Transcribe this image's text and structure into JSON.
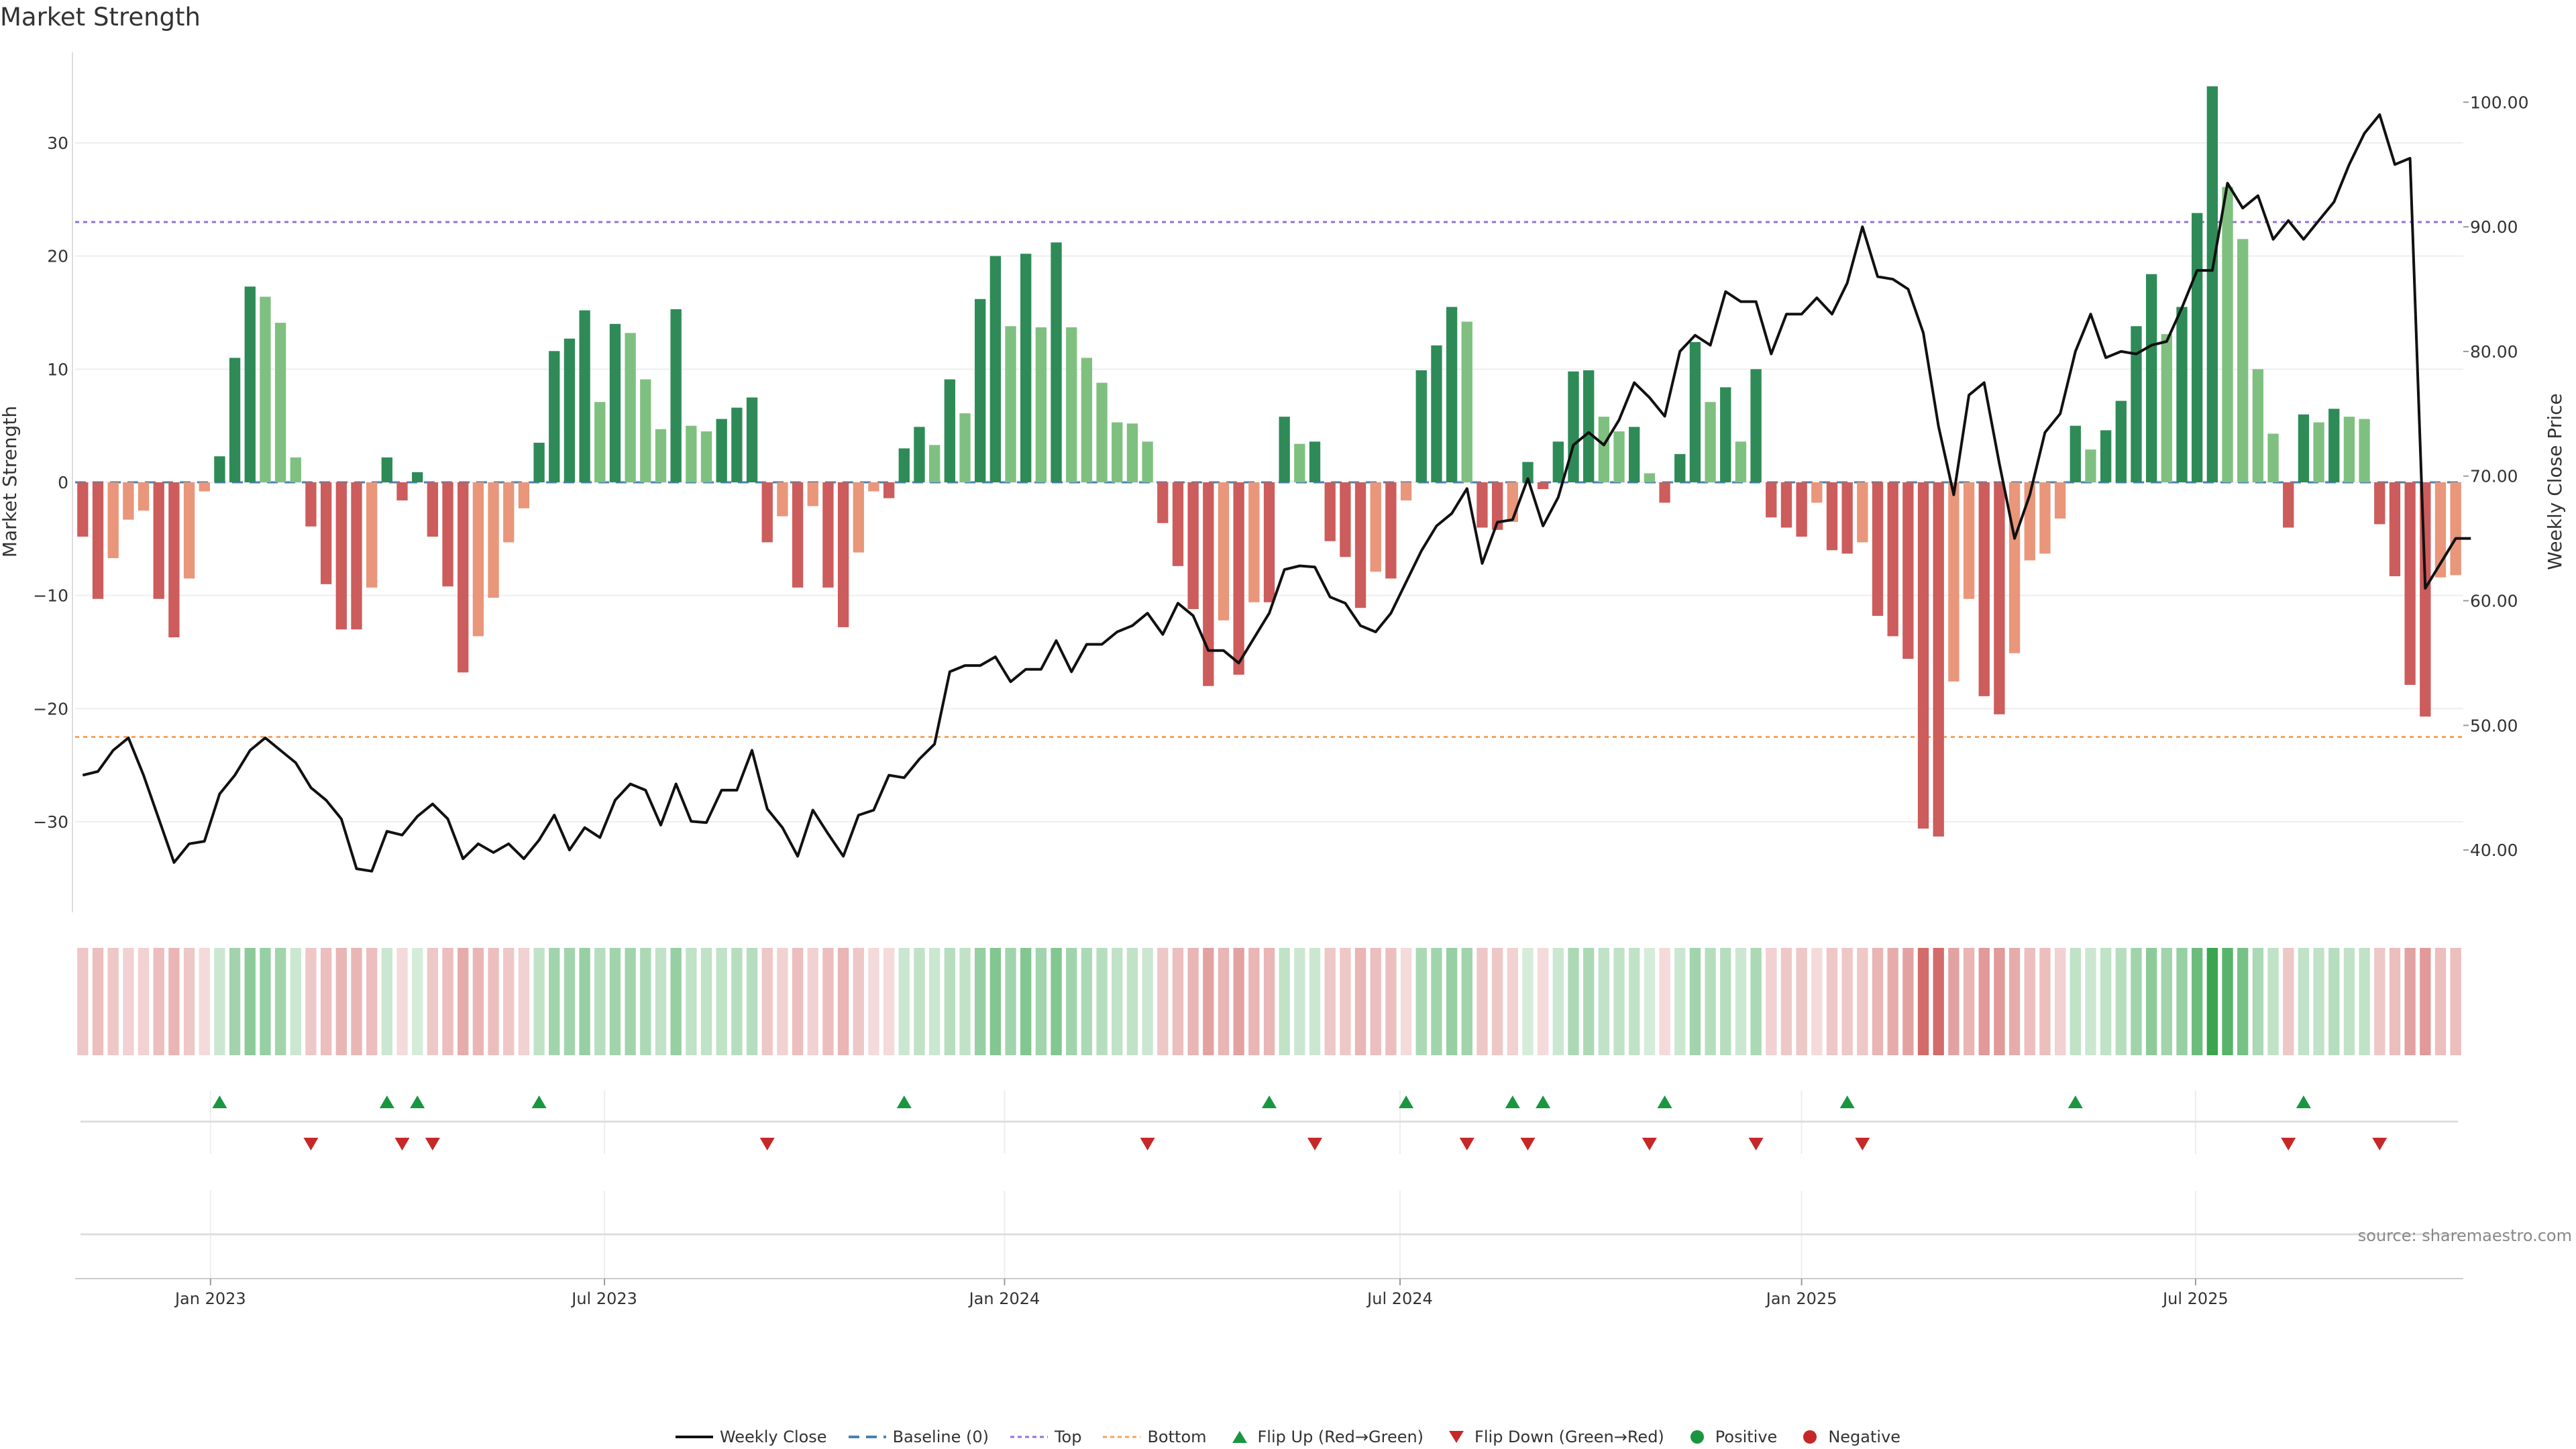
{
  "chart_data": {
    "type": "bar",
    "title": "Market Strength",
    "ylabel": "Market Strength",
    "y2label": "Weekly Close Price",
    "ylim": [
      -38,
      38
    ],
    "y2lim": [
      35,
      104
    ],
    "yticks": [
      30,
      20,
      10,
      0,
      -10,
      -20,
      -30
    ],
    "ytick_labels": [
      "30",
      "20",
      "10",
      "0",
      "−10",
      "−20",
      "−30"
    ],
    "y2ticks": [
      100,
      90,
      80,
      70,
      60,
      50,
      40
    ],
    "y2tick_labels": [
      "100.00",
      "90.00",
      "80.00",
      "70.00",
      "60.00",
      "50.00",
      "40.00"
    ],
    "xticks": [
      "Jan 2023",
      "Jul 2023",
      "Jan 2024",
      "Jul 2024",
      "Jan 2025",
      "Jul 2025"
    ],
    "xtick_weeks": [
      8.4,
      34.3,
      60.6,
      86.6,
      113,
      138.9
    ],
    "top_line": 23,
    "bottom_line": -22.5,
    "source": "source: sharemaestro.com",
    "colors": {
      "pos_strong": "#2e8b57",
      "pos_weak": "#7fc080",
      "neg_strong": "#cd5c5c",
      "neg_weak": "#e9967a",
      "price": "#111111",
      "baseline": "#4682b4",
      "top": "#9370db",
      "bottom": "#f4a460",
      "flip_up": "#1a9641",
      "flip_down": "#c62828"
    },
    "strength": [
      -4.8,
      -10.3,
      -6.7,
      -3.3,
      -2.5,
      -10.3,
      -13.7,
      -8.5,
      -0.8,
      2.3,
      11.0,
      17.3,
      16.4,
      14.1,
      2.2,
      -3.9,
      -9.0,
      -13.0,
      -13.0,
      -9.3,
      2.2,
      -1.6,
      0.9,
      -4.8,
      -9.2,
      -16.8,
      -13.6,
      -10.2,
      -5.3,
      -2.3,
      3.5,
      11.6,
      12.7,
      15.2,
      7.1,
      14.0,
      13.2,
      9.1,
      4.7,
      15.3,
      5.0,
      4.5,
      5.6,
      6.6,
      7.5,
      -5.3,
      -3.0,
      -9.3,
      -2.1,
      -9.3,
      -12.8,
      -6.2,
      -0.8,
      -1.4,
      3.0,
      4.9,
      3.3,
      9.1,
      6.1,
      16.2,
      20.0,
      13.8,
      20.2,
      13.7,
      21.2,
      13.7,
      11.0,
      8.8,
      5.3,
      5.2,
      3.6,
      -3.6,
      -7.4,
      -11.2,
      -18.0,
      -12.2,
      -17.0,
      -10.6,
      -10.6,
      5.8,
      3.4,
      3.6,
      -5.2,
      -6.6,
      -11.1,
      -7.9,
      -8.5,
      -1.6,
      9.9,
      12.1,
      15.5,
      14.2,
      -4.0,
      -4.2,
      -3.5,
      1.8,
      -0.6,
      3.6,
      9.8,
      9.9,
      5.8,
      4.5,
      4.9,
      0.8,
      -1.8,
      2.5,
      12.4,
      7.1,
      8.4,
      3.6,
      10.0,
      -3.1,
      -4.0,
      -4.8,
      -1.8,
      -6.0,
      -6.3,
      -5.3,
      -11.8,
      -13.6,
      -15.6,
      -30.6,
      -31.3,
      -17.6,
      -10.3,
      -18.9,
      -20.5,
      -15.1,
      -6.9,
      -6.3,
      -3.2,
      5.0,
      2.9,
      4.6,
      7.2,
      13.8,
      18.4,
      13.1,
      15.5,
      23.8,
      35.0,
      26.1,
      21.5,
      10.0,
      4.3,
      -4.0,
      6.0,
      5.3,
      6.5,
      5.8,
      5.6,
      -3.7,
      -8.3,
      -17.9,
      -20.7,
      -8.4,
      -8.2
    ],
    "strength_intensity": [
      0.3,
      0.35,
      0.3,
      0.25,
      0.25,
      0.35,
      0.4,
      0.3,
      0.2,
      0.25,
      0.45,
      0.55,
      0.5,
      0.45,
      0.25,
      0.3,
      0.35,
      0.4,
      0.4,
      0.35,
      0.25,
      0.2,
      0.2,
      0.3,
      0.35,
      0.45,
      0.4,
      0.35,
      0.3,
      0.25,
      0.3,
      0.45,
      0.45,
      0.5,
      0.35,
      0.45,
      0.45,
      0.4,
      0.3,
      0.5,
      0.3,
      0.3,
      0.3,
      0.35,
      0.35,
      0.3,
      0.25,
      0.35,
      0.25,
      0.35,
      0.4,
      0.3,
      0.2,
      0.2,
      0.25,
      0.3,
      0.25,
      0.35,
      0.3,
      0.5,
      0.6,
      0.45,
      0.6,
      0.45,
      0.6,
      0.45,
      0.4,
      0.35,
      0.3,
      0.3,
      0.25,
      0.3,
      0.35,
      0.4,
      0.5,
      0.4,
      0.5,
      0.4,
      0.4,
      0.3,
      0.25,
      0.25,
      0.3,
      0.3,
      0.4,
      0.35,
      0.35,
      0.2,
      0.4,
      0.45,
      0.5,
      0.45,
      0.3,
      0.3,
      0.25,
      0.2,
      0.2,
      0.25,
      0.4,
      0.4,
      0.3,
      0.3,
      0.3,
      0.2,
      0.2,
      0.25,
      0.45,
      0.35,
      0.35,
      0.25,
      0.4,
      0.25,
      0.3,
      0.3,
      0.2,
      0.3,
      0.3,
      0.3,
      0.4,
      0.45,
      0.5,
      0.8,
      0.8,
      0.5,
      0.4,
      0.55,
      0.55,
      0.45,
      0.35,
      0.35,
      0.25,
      0.3,
      0.25,
      0.3,
      0.35,
      0.45,
      0.55,
      0.45,
      0.5,
      0.7,
      0.95,
      0.8,
      0.65,
      0.4,
      0.3,
      0.3,
      0.3,
      0.3,
      0.35,
      0.3,
      0.3,
      0.3,
      0.35,
      0.5,
      0.55,
      0.35,
      0.35
    ],
    "close": [
      46.0,
      46.3,
      48.0,
      49.0,
      46.0,
      42.5,
      39.0,
      40.5,
      40.7,
      44.5,
      46.0,
      48.0,
      49.0,
      48.0,
      47.0,
      45.0,
      44.0,
      42.5,
      38.5,
      38.3,
      41.5,
      41.2,
      42.7,
      43.7,
      42.5,
      39.3,
      40.5,
      39.8,
      40.5,
      39.3,
      40.8,
      42.8,
      40.0,
      41.8,
      41.0,
      44.0,
      45.3,
      44.8,
      42.0,
      45.3,
      42.3,
      42.2,
      44.8,
      44.8,
      48.0,
      43.3,
      41.8,
      39.5,
      43.2,
      41.3,
      39.5,
      42.8,
      43.2,
      46.0,
      45.8,
      47.3,
      48.5,
      54.3,
      54.8,
      54.8,
      55.5,
      53.5,
      54.5,
      54.5,
      56.8,
      54.3,
      56.5,
      56.5,
      57.5,
      58.0,
      59.0,
      57.3,
      59.8,
      58.8,
      56.0,
      56.0,
      55.0,
      57.0,
      59.0,
      62.5,
      62.8,
      62.7,
      60.3,
      59.8,
      58.0,
      57.5,
      59.0,
      61.5,
      64.0,
      66.0,
      67.0,
      69.0,
      63.0,
      66.3,
      66.5,
      69.8,
      66.0,
      68.3,
      72.5,
      73.5,
      72.5,
      74.5,
      77.5,
      76.3,
      74.8,
      80.0,
      81.3,
      80.5,
      84.8,
      84.0,
      84.0,
      79.8,
      83.0,
      83.0,
      84.3,
      83.0,
      85.5,
      90.0,
      86.0,
      85.8,
      85.0,
      81.5,
      74.0,
      68.5,
      76.5,
      77.5,
      71.0,
      65.0,
      68.5,
      73.5,
      75.0,
      80.0,
      83.0,
      79.5,
      80.0,
      79.8,
      80.5,
      80.8,
      83.5,
      86.5,
      86.5,
      93.5,
      91.5,
      92.5,
      89.0,
      90.5,
      89.0,
      90.5,
      92.0,
      95.0,
      97.5,
      99.0,
      95.0,
      95.5,
      61.0,
      63.0,
      65.0,
      65.0
    ],
    "flip_up_weeks": [
      9,
      20,
      22,
      30,
      54,
      78,
      87,
      94,
      96,
      104,
      116,
      131,
      146
    ],
    "flip_down_weeks": [
      15,
      21,
      23,
      45,
      70,
      81,
      91,
      95,
      103,
      110,
      117,
      145,
      151
    ],
    "legend": [
      {
        "key": "weekly-close",
        "label": "Weekly Close"
      },
      {
        "key": "baseline",
        "label": "Baseline (0)"
      },
      {
        "key": "top",
        "label": "Top"
      },
      {
        "key": "bottom",
        "label": "Bottom"
      },
      {
        "key": "flip-up",
        "label": "Flip Up (Red→Green)"
      },
      {
        "key": "flip-down",
        "label": "Flip Down (Green→Red)"
      },
      {
        "key": "positive",
        "label": "Positive"
      },
      {
        "key": "negative",
        "label": "Negative"
      }
    ]
  }
}
